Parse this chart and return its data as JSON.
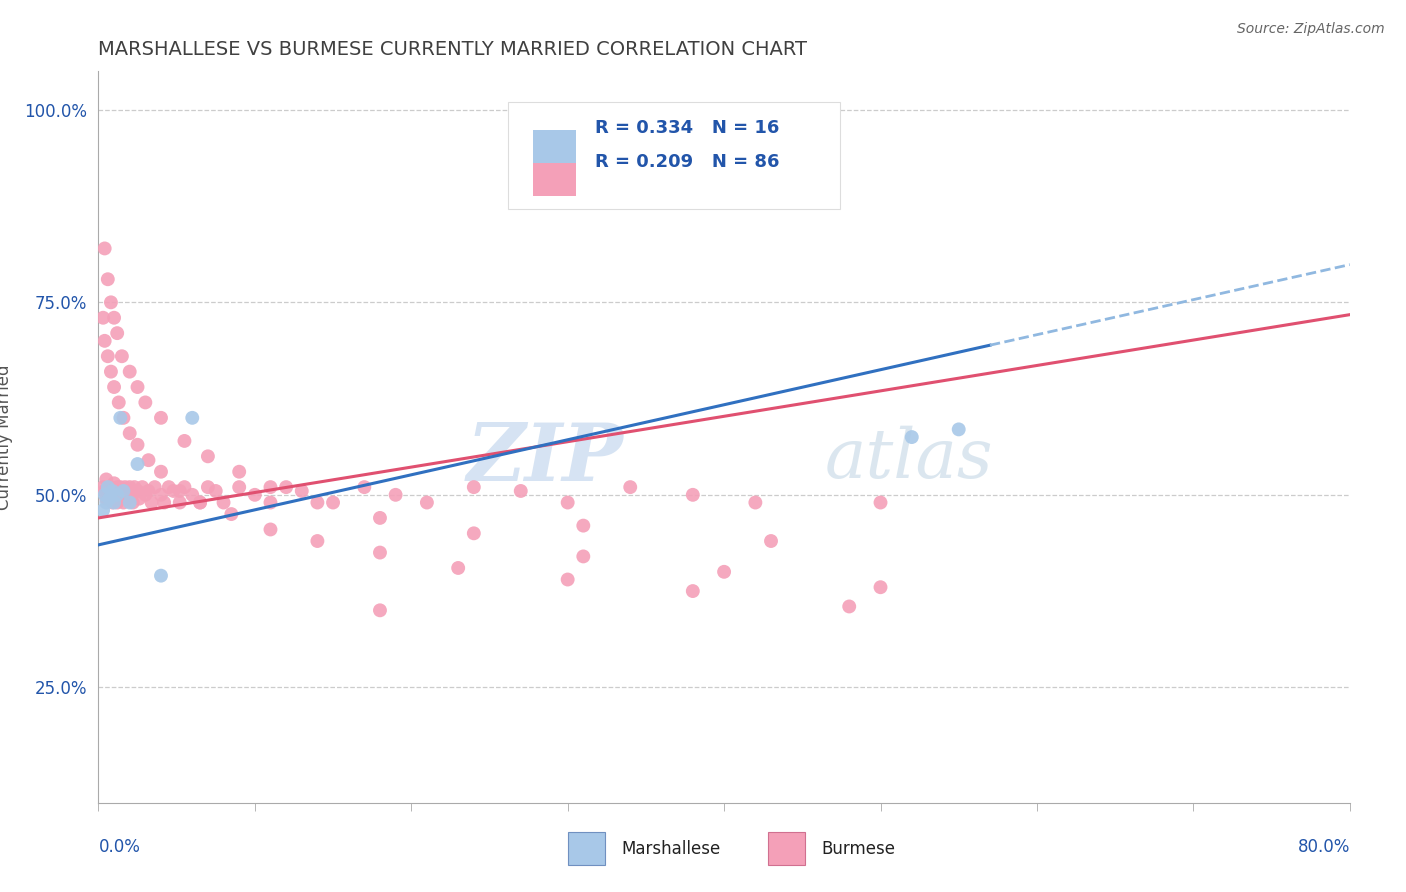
{
  "title": "MARSHALLESE VS BURMESE CURRENTLY MARRIED CORRELATION CHART",
  "source": "Source: ZipAtlas.com",
  "ylabel": "Currently Married",
  "xlim": [
    0.0,
    0.8
  ],
  "ylim": [
    0.1,
    1.05
  ],
  "ylabel_ticks": [
    0.25,
    0.5,
    0.75,
    1.0
  ],
  "ylabel_tick_labels": [
    "25.0%",
    "50.0%",
    "75.0%",
    "100.0%"
  ],
  "legend_marshallese": "R = 0.334   N = 16",
  "legend_burmese": "R = 0.209   N = 86",
  "marshallese_color": "#a8c8e8",
  "burmese_color": "#f4a0b8",
  "marshallese_line_color": "#3070c0",
  "burmese_line_color": "#e05070",
  "dashed_line_color": "#90b8e0",
  "legend_text_color": "#2255aa",
  "title_color": "#404040",
  "watermark_zip": "ZIP",
  "watermark_atlas": "atlas",
  "marshallese_x": [
    0.003,
    0.004,
    0.005,
    0.006,
    0.007,
    0.009,
    0.01,
    0.012,
    0.014,
    0.016,
    0.02,
    0.025,
    0.06,
    0.52,
    0.55,
    0.04
  ],
  "marshallese_y": [
    0.48,
    0.5,
    0.49,
    0.51,
    0.495,
    0.505,
    0.49,
    0.5,
    0.6,
    0.505,
    0.49,
    0.54,
    0.6,
    0.575,
    0.585,
    0.395
  ],
  "burmese_x": [
    0.003,
    0.004,
    0.005,
    0.005,
    0.006,
    0.007,
    0.007,
    0.008,
    0.008,
    0.009,
    0.009,
    0.01,
    0.01,
    0.011,
    0.012,
    0.012,
    0.013,
    0.013,
    0.014,
    0.015,
    0.015,
    0.016,
    0.017,
    0.018,
    0.019,
    0.02,
    0.021,
    0.022,
    0.023,
    0.025,
    0.026,
    0.028,
    0.03,
    0.032,
    0.034,
    0.036,
    0.04,
    0.042,
    0.045,
    0.048,
    0.052,
    0.055,
    0.06,
    0.065,
    0.07,
    0.075,
    0.08,
    0.09,
    0.1,
    0.11,
    0.12,
    0.13,
    0.15,
    0.17,
    0.19,
    0.21,
    0.24,
    0.27,
    0.3,
    0.34,
    0.38,
    0.42,
    0.004,
    0.006,
    0.008,
    0.01,
    0.012,
    0.015,
    0.02,
    0.025,
    0.03,
    0.04,
    0.055,
    0.07,
    0.09,
    0.11,
    0.14,
    0.18,
    0.24,
    0.31,
    0.4,
    0.5,
    0.18,
    0.31,
    0.43,
    0.5
  ],
  "burmese_y": [
    0.51,
    0.505,
    0.495,
    0.52,
    0.505,
    0.51,
    0.495,
    0.505,
    0.51,
    0.5,
    0.49,
    0.505,
    0.515,
    0.5,
    0.49,
    0.51,
    0.505,
    0.495,
    0.51,
    0.5,
    0.505,
    0.49,
    0.51,
    0.505,
    0.495,
    0.51,
    0.5,
    0.49,
    0.51,
    0.505,
    0.495,
    0.51,
    0.5,
    0.505,
    0.49,
    0.51,
    0.5,
    0.49,
    0.51,
    0.505,
    0.49,
    0.51,
    0.5,
    0.49,
    0.51,
    0.505,
    0.49,
    0.51,
    0.5,
    0.49,
    0.51,
    0.505,
    0.49,
    0.51,
    0.5,
    0.49,
    0.51,
    0.505,
    0.49,
    0.51,
    0.5,
    0.49,
    0.82,
    0.78,
    0.75,
    0.73,
    0.71,
    0.68,
    0.66,
    0.64,
    0.62,
    0.6,
    0.57,
    0.55,
    0.53,
    0.51,
    0.49,
    0.47,
    0.45,
    0.42,
    0.4,
    0.38,
    0.35,
    0.46,
    0.44,
    0.49
  ],
  "burmese_x2": [
    0.003,
    0.004,
    0.006,
    0.008,
    0.01,
    0.013,
    0.016,
    0.02,
    0.025,
    0.032,
    0.04,
    0.052,
    0.065,
    0.085,
    0.11,
    0.14,
    0.18,
    0.23,
    0.3,
    0.38,
    0.48
  ],
  "burmese_y2": [
    0.73,
    0.7,
    0.68,
    0.66,
    0.64,
    0.62,
    0.6,
    0.58,
    0.565,
    0.545,
    0.53,
    0.505,
    0.49,
    0.475,
    0.455,
    0.44,
    0.425,
    0.405,
    0.39,
    0.375,
    0.355
  ]
}
